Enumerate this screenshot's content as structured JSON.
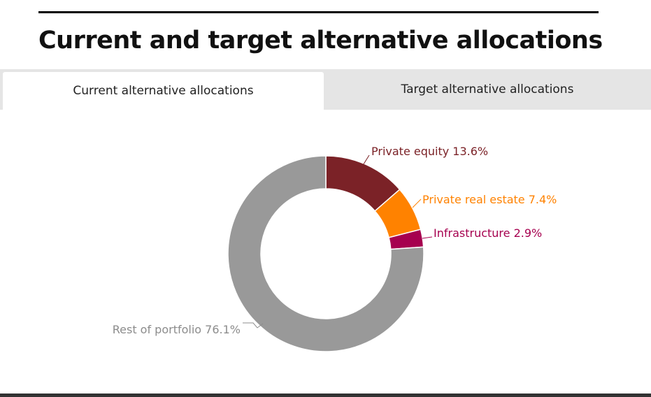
{
  "page": {
    "title": "Current and target alternative allocations"
  },
  "tabs": [
    {
      "label": "Current alternative allocations",
      "active": true
    },
    {
      "label": "Target alternative allocations",
      "active": false
    }
  ],
  "chart_data": {
    "type": "pie",
    "variant": "donut",
    "categories": [
      "Private equity",
      "Private real estate",
      "Infrastructure",
      "Rest of portfolio"
    ],
    "values": [
      13.6,
      7.4,
      2.9,
      76.1
    ],
    "unit": "%",
    "labels": [
      "Private equity 13.6%",
      "Private real estate 7.4%",
      "Infrastructure 2.9%",
      "Rest of portfolio 76.1%"
    ],
    "colors": [
      "#7b2227",
      "#ff8200",
      "#a6004f",
      "#999999"
    ],
    "label_colors": [
      "#7b2227",
      "#ff8200",
      "#a6004f",
      "#8c8c8c"
    ]
  }
}
